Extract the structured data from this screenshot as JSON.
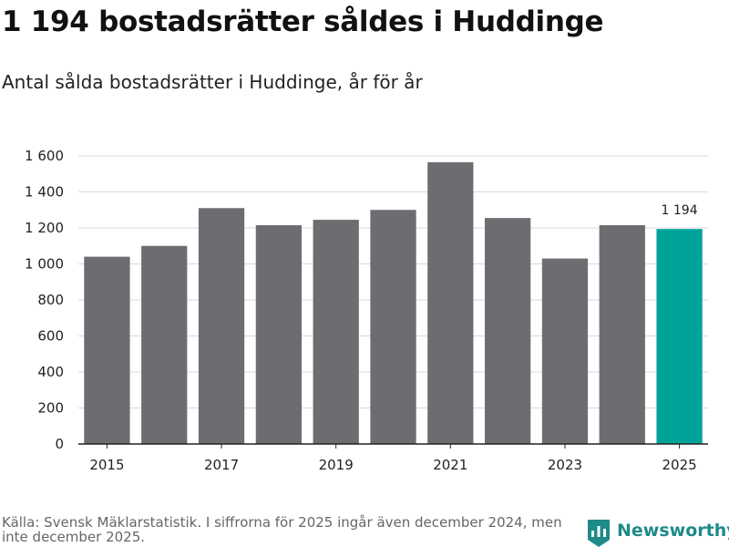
{
  "header": {
    "title": "1 194 bostadsrätter såldes i Huddinge",
    "subtitle": "Antal sålda bostadsrätter i Huddinge, år för år"
  },
  "footer": {
    "source": "Källa: Svensk Mäklarstatistik. I siffrorna för 2025 ingår även december 2024, men inte december 2025.",
    "brand": "Newsworthy"
  },
  "colors": {
    "bar": "#6d6c71",
    "highlight": "#00a39a",
    "grid": "#d9d9d9",
    "axis": "#222222",
    "brand": "#1f8a8a"
  },
  "chart_data": {
    "type": "bar",
    "title": "1 194 bostadsrätter såldes i Huddinge",
    "subtitle": "Antal sålda bostadsrätter i Huddinge, år för år",
    "xlabel": "",
    "ylabel": "",
    "categories": [
      "2015",
      "2016",
      "2017",
      "2018",
      "2019",
      "2020",
      "2021",
      "2022",
      "2023",
      "2024",
      "2025"
    ],
    "values": [
      1040,
      1100,
      1310,
      1215,
      1245,
      1300,
      1565,
      1255,
      1030,
      1215,
      1194
    ],
    "x_tick_labels": [
      "2015",
      "2017",
      "2019",
      "2021",
      "2023",
      "2025"
    ],
    "y_ticks": [
      0,
      200,
      400,
      600,
      800,
      1000,
      1200,
      1400,
      1600
    ],
    "y_tick_labels": [
      "0",
      "200",
      "400",
      "600",
      "800",
      "1 000",
      "1 200",
      "1 400",
      "1 600"
    ],
    "ylim": [
      0,
      1600
    ],
    "grid": true,
    "highlight_category": "2025",
    "data_labels": [
      {
        "category": "2025",
        "label": "1 194"
      }
    ]
  }
}
